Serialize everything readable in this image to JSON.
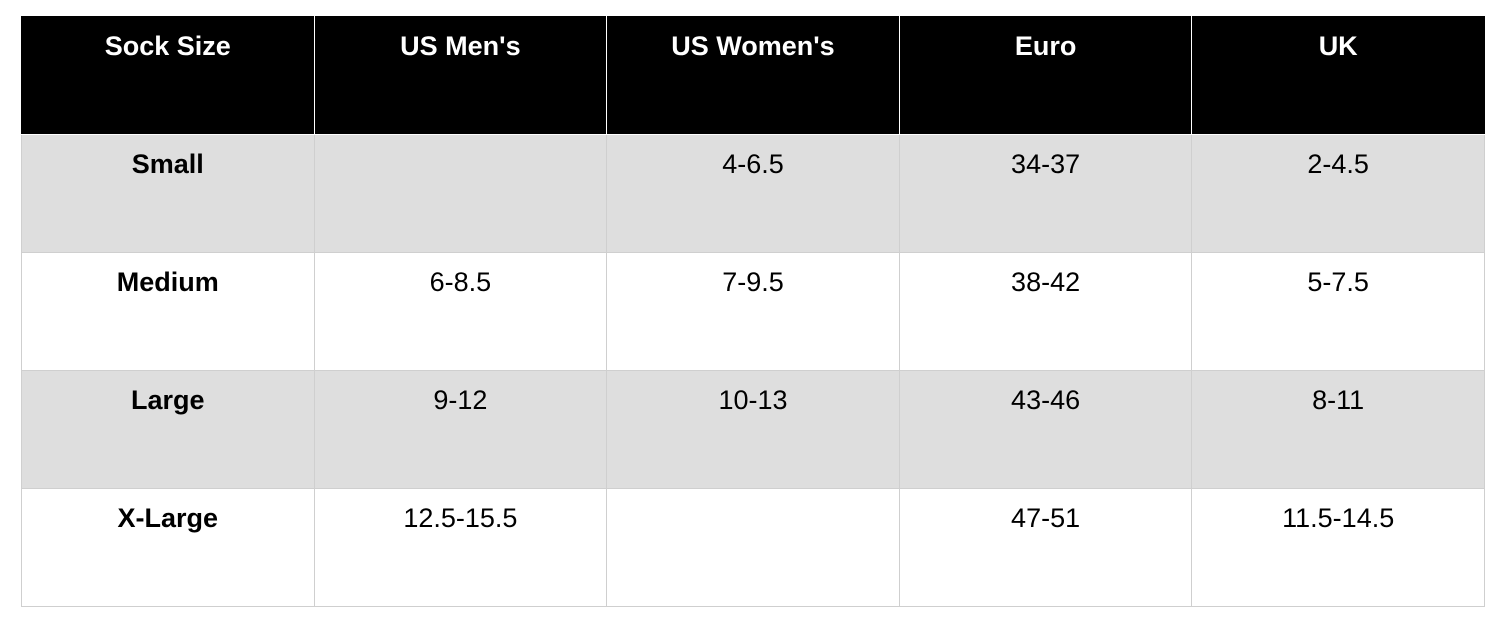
{
  "table": {
    "header": [
      "Sock Size",
      "US Men's",
      "US Women's",
      "Euro",
      "UK"
    ],
    "rows": [
      [
        "Small",
        null,
        "4-6.5",
        "34-37",
        "2-4.5"
      ],
      [
        "Medium",
        "6-8.5",
        "7-9.5",
        "38-42",
        "5-7.5"
      ],
      [
        "Large",
        "9-12",
        "10-13",
        "43-46",
        "8-11"
      ],
      [
        "X-Large",
        "12.5-15.5",
        null,
        "47-51",
        "11.5-14.5"
      ]
    ]
  }
}
